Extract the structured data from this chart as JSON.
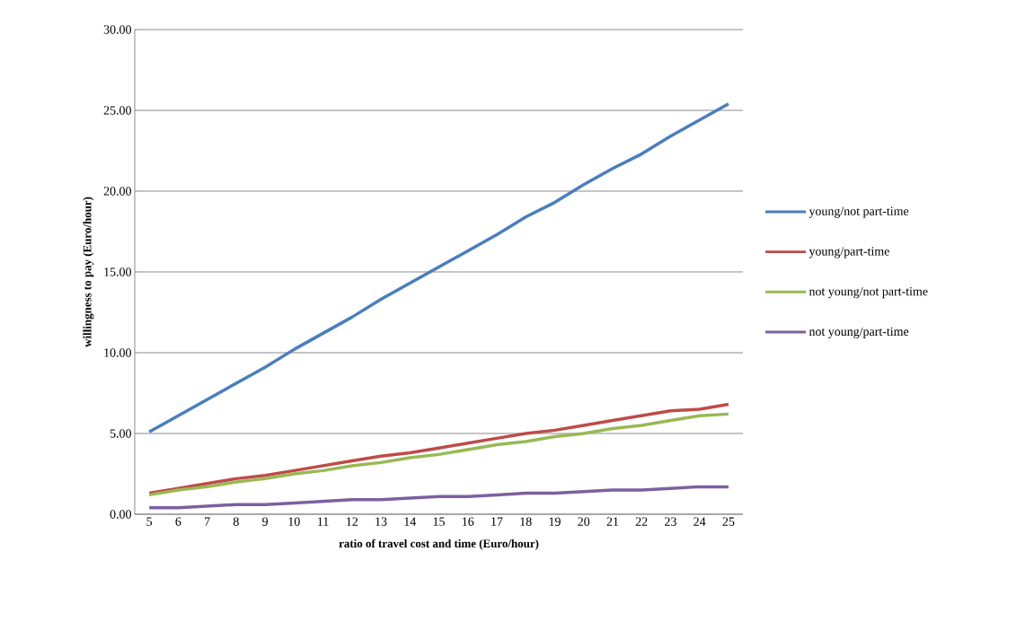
{
  "chart_data": {
    "type": "line",
    "xlabel": "ratio of travel cost and time (Euro/hour)",
    "ylabel": "willingness to pay (Euro/hour)",
    "categories": [
      "5",
      "6",
      "7",
      "8",
      "9",
      "10",
      "11",
      "12",
      "13",
      "14",
      "15",
      "16",
      "17",
      "18",
      "19",
      "20",
      "21",
      "22",
      "23",
      "24",
      "25"
    ],
    "series": [
      {
        "name": "young/not part-time",
        "color": "#4a7ebb",
        "values": [
          5.1,
          6.1,
          7.1,
          8.1,
          9.1,
          10.2,
          11.2,
          12.2,
          13.3,
          14.3,
          15.3,
          16.3,
          17.3,
          18.4,
          19.3,
          20.4,
          21.4,
          22.3,
          23.4,
          24.4,
          25.4
        ]
      },
      {
        "name": "young/part-time",
        "color": "#be4b48",
        "values": [
          1.3,
          1.6,
          1.9,
          2.2,
          2.4,
          2.7,
          3.0,
          3.3,
          3.6,
          3.8,
          4.1,
          4.4,
          4.7,
          5.0,
          5.2,
          5.5,
          5.8,
          6.1,
          6.4,
          6.5,
          6.8
        ]
      },
      {
        "name": "not young/not part-time",
        "color": "#98b954",
        "values": [
          1.2,
          1.5,
          1.7,
          2.0,
          2.2,
          2.5,
          2.7,
          3.0,
          3.2,
          3.5,
          3.7,
          4.0,
          4.3,
          4.5,
          4.8,
          5.0,
          5.3,
          5.5,
          5.8,
          6.1,
          6.2
        ]
      },
      {
        "name": "not young/part-time",
        "color": "#7d60a0",
        "values": [
          0.4,
          0.4,
          0.5,
          0.6,
          0.6,
          0.7,
          0.8,
          0.9,
          0.9,
          1.0,
          1.1,
          1.1,
          1.2,
          1.3,
          1.3,
          1.4,
          1.5,
          1.5,
          1.6,
          1.7,
          1.7
        ]
      }
    ],
    "ylim": [
      0,
      30
    ],
    "yticks": [
      {
        "value": 0,
        "label": "0.00"
      },
      {
        "value": 5,
        "label": "5.00"
      },
      {
        "value": 10,
        "label": "10.00"
      },
      {
        "value": 15,
        "label": "15.00"
      },
      {
        "value": 20,
        "label": "20.00"
      },
      {
        "value": 25,
        "label": "25.00"
      },
      {
        "value": 30,
        "label": "30.00"
      }
    ],
    "grid": "y",
    "legend": "right",
    "marker": "none",
    "line_style": "solid"
  }
}
